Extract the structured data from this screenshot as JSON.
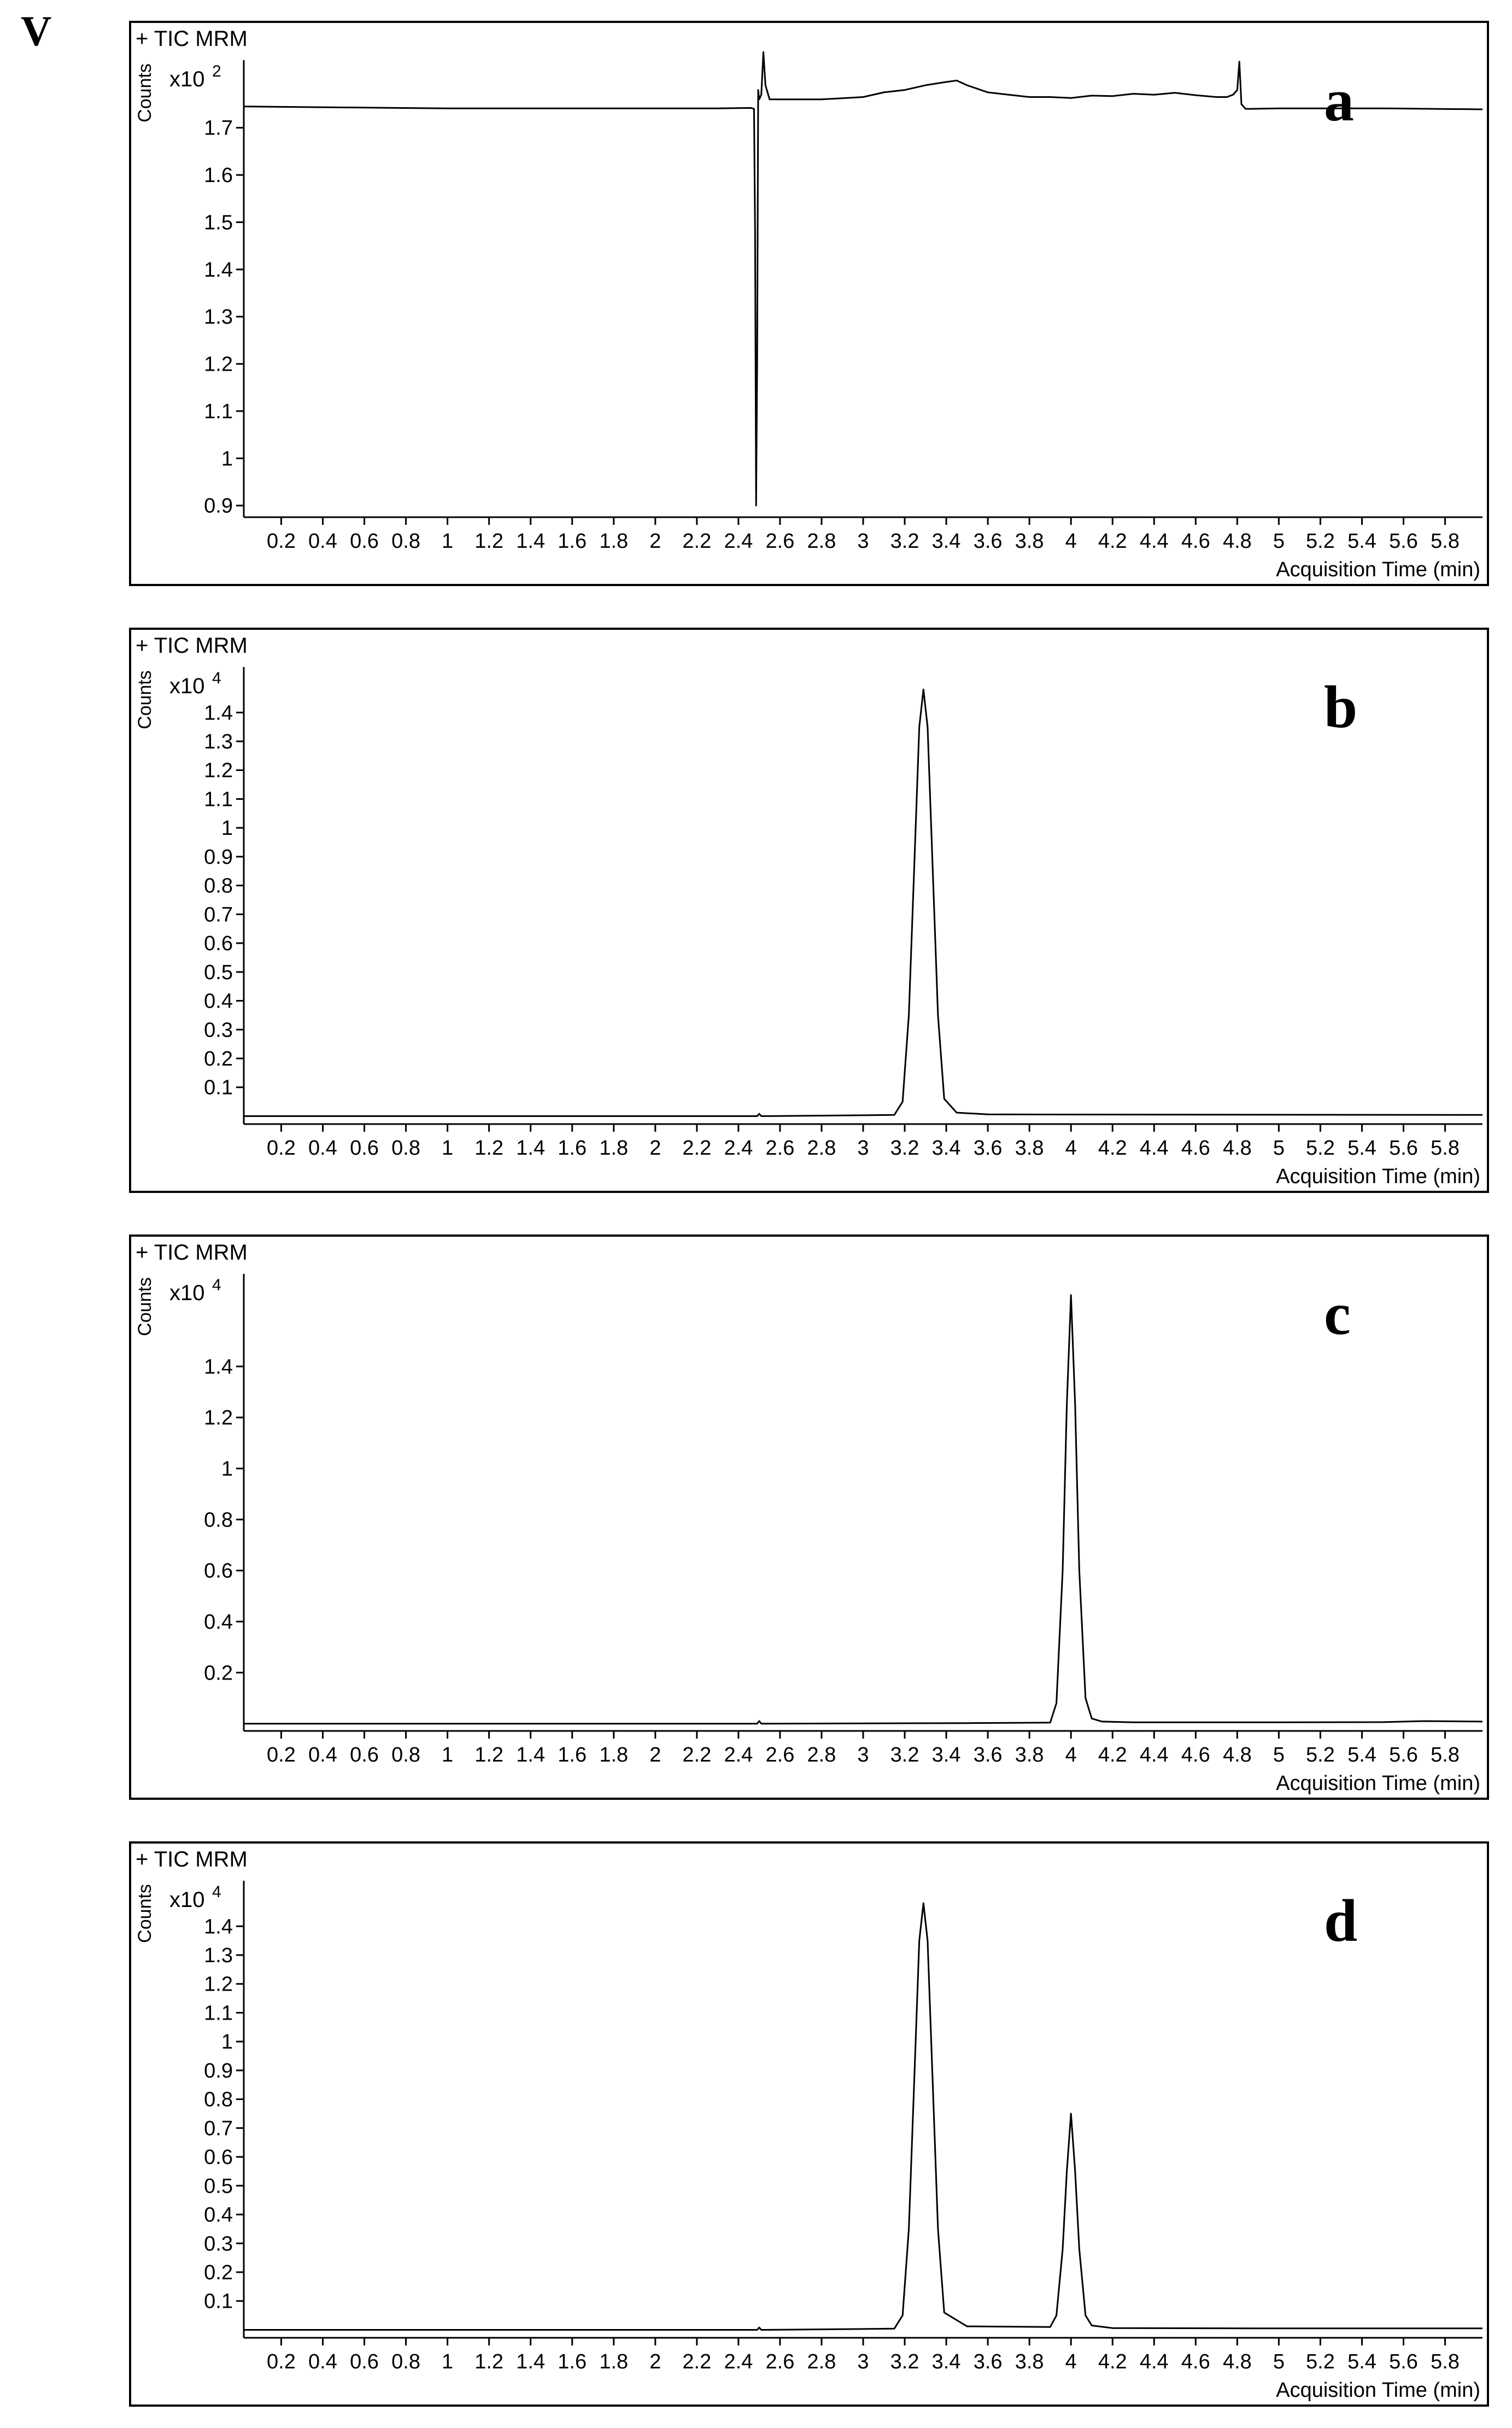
{
  "figure_label": "V",
  "chart_data": [
    {
      "type": "line",
      "panel_letter": "a",
      "title": "+ TIC MRM",
      "ylabel": "Counts",
      "ymultiplier": "x10",
      "yexponent": "2",
      "xlabel": "Acquisition Time (min)",
      "xlim": [
        0.02,
        5.98
      ],
      "ylim": [
        0.88,
        1.82
      ],
      "xticks": [
        0.2,
        0.4,
        0.6,
        0.8,
        1,
        1.2,
        1.4,
        1.6,
        1.8,
        2,
        2.2,
        2.4,
        2.6,
        2.8,
        3,
        3.2,
        3.4,
        3.6,
        3.8,
        4,
        4.2,
        4.4,
        4.6,
        4.8,
        5,
        5.2,
        5.4,
        5.6,
        5.8
      ],
      "yticks": [
        0.9,
        1,
        1.1,
        1.2,
        1.3,
        1.4,
        1.5,
        1.6,
        1.7
      ],
      "grid": false,
      "series": [
        {
          "x": [
            0.02,
            0.5,
            1.0,
            1.5,
            2.0,
            2.3,
            2.46,
            2.475,
            2.48,
            2.485,
            2.49,
            2.495,
            2.5,
            2.51,
            2.52,
            2.53,
            2.55,
            2.6,
            2.8,
            3.0,
            3.1,
            3.2,
            3.3,
            3.4,
            3.45,
            3.5,
            3.6,
            3.7,
            3.8,
            3.9,
            4.0,
            4.1,
            4.2,
            4.3,
            4.4,
            4.5,
            4.6,
            4.7,
            4.75,
            4.78,
            4.8,
            4.81,
            4.82,
            4.84,
            4.86,
            5.0,
            5.5,
            5.98
          ],
          "y": [
            1.745,
            1.743,
            1.741,
            1.741,
            1.741,
            1.741,
            1.742,
            1.74,
            1.48,
            0.9,
            1.2,
            1.78,
            1.76,
            1.77,
            1.86,
            1.79,
            1.76,
            1.76,
            1.76,
            1.765,
            1.775,
            1.78,
            1.79,
            1.797,
            1.8,
            1.79,
            1.775,
            1.77,
            1.765,
            1.765,
            1.763,
            1.768,
            1.767,
            1.772,
            1.77,
            1.774,
            1.769,
            1.765,
            1.765,
            1.77,
            1.78,
            1.84,
            1.75,
            1.74,
            1.74,
            1.741,
            1.741,
            1.739
          ]
        }
      ]
    },
    {
      "type": "line",
      "panel_letter": "b",
      "title": "+ TIC MRM",
      "ylabel": "Counts",
      "ymultiplier": "x10",
      "yexponent": "4",
      "xlabel": "Acquisition Time (min)",
      "xlim": [
        0.02,
        5.98
      ],
      "ylim": [
        -0.02,
        1.52
      ],
      "xticks": [
        0.2,
        0.4,
        0.6,
        0.8,
        1,
        1.2,
        1.4,
        1.6,
        1.8,
        2,
        2.2,
        2.4,
        2.6,
        2.8,
        3,
        3.2,
        3.4,
        3.6,
        3.8,
        4,
        4.2,
        4.4,
        4.6,
        4.8,
        5,
        5.2,
        5.4,
        5.6,
        5.8
      ],
      "yticks": [
        0.1,
        0.2,
        0.3,
        0.4,
        0.5,
        0.6,
        0.7,
        0.8,
        0.9,
        1,
        1.1,
        1.2,
        1.3,
        1.4
      ],
      "grid": false,
      "series": [
        {
          "x": [
            0.02,
            1.0,
            2.0,
            2.49,
            2.5,
            2.51,
            3.0,
            3.15,
            3.19,
            3.22,
            3.25,
            3.27,
            3.29,
            3.31,
            3.33,
            3.36,
            3.39,
            3.45,
            3.6,
            4.5,
            5.98
          ],
          "y": [
            0.0,
            0.0,
            0.0,
            0.0,
            0.008,
            0.0,
            0.003,
            0.004,
            0.05,
            0.35,
            0.95,
            1.35,
            1.48,
            1.35,
            0.95,
            0.35,
            0.06,
            0.012,
            0.006,
            0.005,
            0.004
          ]
        }
      ]
    },
    {
      "type": "line",
      "panel_letter": "c",
      "title": "+ TIC MRM",
      "ylabel": "Counts",
      "ymultiplier": "x10",
      "yexponent": "4",
      "xlabel": "Acquisition Time (min)",
      "xlim": [
        0.02,
        5.98
      ],
      "ylim": [
        -0.02,
        1.72
      ],
      "xticks": [
        0.2,
        0.4,
        0.6,
        0.8,
        1,
        1.2,
        1.4,
        1.6,
        1.8,
        2,
        2.2,
        2.4,
        2.6,
        2.8,
        3,
        3.2,
        3.4,
        3.6,
        3.8,
        4,
        4.2,
        4.4,
        4.6,
        4.8,
        5,
        5.2,
        5.4,
        5.6,
        5.8
      ],
      "yticks": [
        0.2,
        0.4,
        0.6,
        0.8,
        1,
        1.2,
        1.4
      ],
      "grid": false,
      "series": [
        {
          "x": [
            0.02,
            1.0,
            2.0,
            2.49,
            2.5,
            2.51,
            3.5,
            3.9,
            3.93,
            3.96,
            3.98,
            4.0,
            4.02,
            4.04,
            4.07,
            4.1,
            4.15,
            4.3,
            5.0,
            5.5,
            5.7,
            5.98
          ],
          "y": [
            0.0,
            0.0,
            0.0,
            0.0,
            0.01,
            0.0,
            0.002,
            0.004,
            0.08,
            0.6,
            1.25,
            1.68,
            1.25,
            0.6,
            0.1,
            0.02,
            0.008,
            0.005,
            0.005,
            0.006,
            0.01,
            0.008
          ]
        }
      ]
    },
    {
      "type": "line",
      "panel_letter": "d",
      "title": "+ TIC MRM",
      "ylabel": "Counts",
      "ymultiplier": "x10",
      "yexponent": "4",
      "xlabel": "Acquisition Time (min)",
      "xlim": [
        0.02,
        5.98
      ],
      "ylim": [
        -0.02,
        1.52
      ],
      "xticks": [
        0.2,
        0.4,
        0.6,
        0.8,
        1,
        1.2,
        1.4,
        1.6,
        1.8,
        2,
        2.2,
        2.4,
        2.6,
        2.8,
        3,
        3.2,
        3.4,
        3.6,
        3.8,
        4,
        4.2,
        4.4,
        4.6,
        4.8,
        5,
        5.2,
        5.4,
        5.6,
        5.8
      ],
      "yticks": [
        0.1,
        0.2,
        0.3,
        0.4,
        0.5,
        0.6,
        0.7,
        0.8,
        0.9,
        1,
        1.1,
        1.2,
        1.3,
        1.4
      ],
      "grid": false,
      "series": [
        {
          "x": [
            0.02,
            1.0,
            2.0,
            2.49,
            2.5,
            2.51,
            3.0,
            3.15,
            3.19,
            3.22,
            3.25,
            3.27,
            3.29,
            3.31,
            3.33,
            3.36,
            3.39,
            3.5,
            3.9,
            3.93,
            3.96,
            3.98,
            4.0,
            4.02,
            4.04,
            4.07,
            4.1,
            4.2,
            5.0,
            5.98
          ],
          "y": [
            0.0,
            0.0,
            0.0,
            0.0,
            0.008,
            0.0,
            0.003,
            0.004,
            0.05,
            0.35,
            0.95,
            1.35,
            1.48,
            1.35,
            0.95,
            0.35,
            0.06,
            0.012,
            0.01,
            0.05,
            0.28,
            0.55,
            0.75,
            0.55,
            0.28,
            0.05,
            0.015,
            0.006,
            0.005,
            0.005
          ]
        }
      ]
    }
  ]
}
